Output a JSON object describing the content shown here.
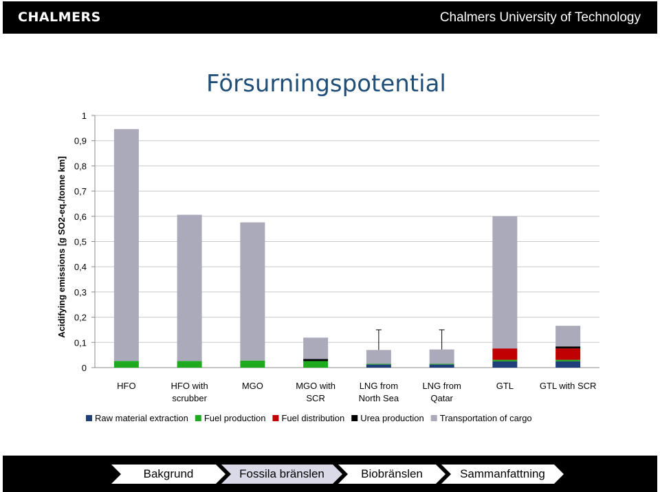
{
  "header": {
    "logo": "CHALMERS",
    "university": "Chalmers University of Technology"
  },
  "slide": {
    "title": "Försurningspotential"
  },
  "colors": {
    "raw": "#1f3f7a",
    "fuel_production": "#1faa1f",
    "fuel_distribution": "#c00000",
    "urea": "#000000",
    "transport": "#aaaaba"
  },
  "chart_data": {
    "type": "bar",
    "stacked": true,
    "ylabel": "Acidifying emissions [g SO2-eq./tonne km]",
    "ylim": [
      0,
      1
    ],
    "yticks": [
      "0",
      "0,1",
      "0,2",
      "0,3",
      "0,4",
      "0,5",
      "0,6",
      "0,7",
      "0,8",
      "0,9",
      "1"
    ],
    "categories": [
      [
        "HFO"
      ],
      [
        "HFO with",
        "scrubber"
      ],
      [
        "MGO"
      ],
      [
        "MGO with",
        "SCR"
      ],
      [
        "LNG from",
        "North Sea"
      ],
      [
        "LNG  from",
        "Qatar"
      ],
      [
        "GTL"
      ],
      [
        "GTL  with SCR"
      ]
    ],
    "series": [
      {
        "name": "Raw material extraction",
        "color": "#1f3f7a",
        "values": [
          0.0,
          0.0,
          0.0,
          0.0,
          0.012,
          0.012,
          0.025,
          0.025
        ]
      },
      {
        "name": "Fuel production",
        "color": "#1faa1f",
        "values": [
          0.026,
          0.026,
          0.028,
          0.026,
          0.003,
          0.003,
          0.006,
          0.006
        ]
      },
      {
        "name": "Fuel distribution",
        "color": "#c00000",
        "values": [
          0.0,
          0.0,
          0.0,
          0.0,
          0.0,
          0.0,
          0.045,
          0.045
        ]
      },
      {
        "name": "Urea production",
        "color": "#000000",
        "values": [
          0.0,
          0.0,
          0.0,
          0.008,
          0.0,
          0.0,
          0.0,
          0.008
        ]
      },
      {
        "name": "Transportation of cargo",
        "color": "#aaaaba",
        "values": [
          0.92,
          0.58,
          0.548,
          0.085,
          0.055,
          0.057,
          0.524,
          0.082
        ]
      }
    ],
    "error_bars_top": [
      null,
      null,
      null,
      null,
      0.15,
      0.15,
      null,
      null
    ],
    "legend_position": "bottom",
    "grid": true
  },
  "nav": {
    "items": [
      "Bakgrund",
      "Fossila bränslen",
      "Biobränslen",
      "Sammanfattning"
    ],
    "active_index": 1
  }
}
